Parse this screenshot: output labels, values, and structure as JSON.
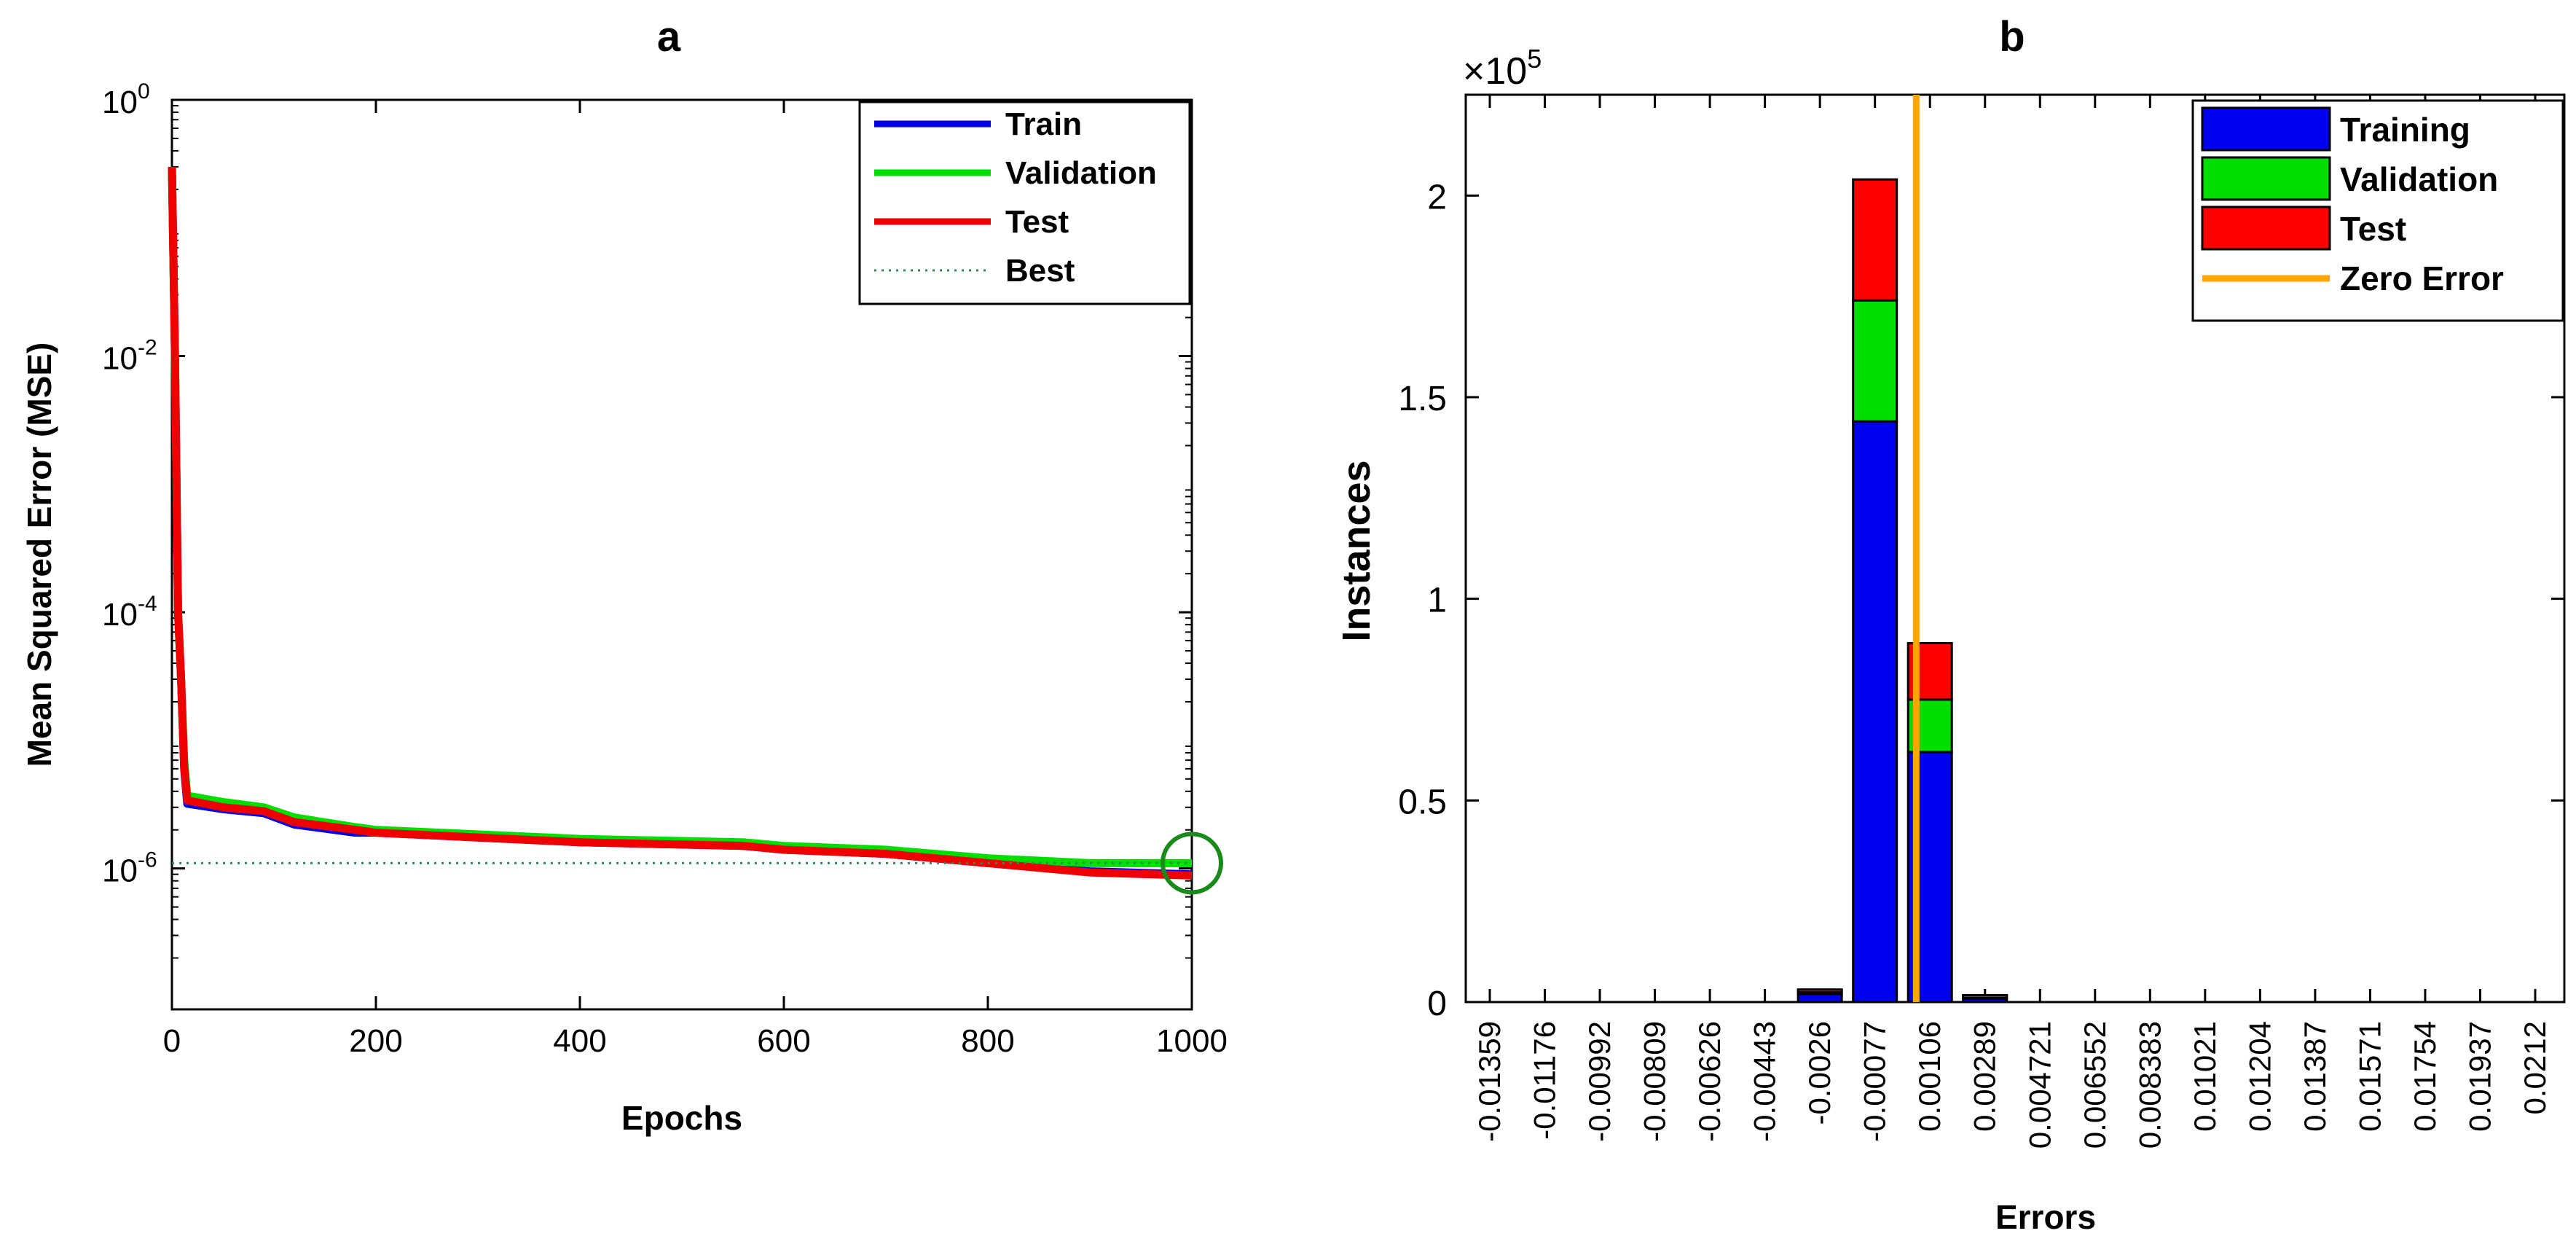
{
  "chart_data": [
    {
      "type": "line",
      "panel_label": "a",
      "title": "a",
      "xlabel": "Epochs",
      "ylabel": "Mean Squared Error  (MSE)",
      "xlim": [
        0,
        1000
      ],
      "ylim_log10": [
        -7.1,
        0
      ],
      "y_scale": "log",
      "x_ticks": [
        0,
        200,
        400,
        600,
        800,
        1000
      ],
      "y_ticks": [
        {
          "base": "10",
          "exp": "0",
          "value": 1
        },
        {
          "base": "10",
          "exp": "-2",
          "value": 0.01
        },
        {
          "base": "10",
          "exp": "-4",
          "value": 0.0001
        },
        {
          "base": "10",
          "exp": "-6",
          "value": 1e-06
        }
      ],
      "legend": {
        "position": "top-right",
        "entries": [
          {
            "label": "Train",
            "color": "#0000e6",
            "style": "solid"
          },
          {
            "label": "Validation",
            "color": "#00dd00",
            "style": "solid"
          },
          {
            "label": "Test",
            "color": "#ee0000",
            "style": "solid"
          },
          {
            "label": "Best",
            "color": "#2e8b57",
            "style": "dotted"
          }
        ]
      },
      "best": {
        "epoch": 1000,
        "value": 1.1e-06,
        "marker": "circle",
        "color": "#1a8a1a"
      },
      "series": [
        {
          "name": "Train",
          "color": "#0000e6",
          "x": [
            0,
            3,
            6,
            9,
            12,
            15,
            50,
            90,
            120,
            180,
            200,
            400,
            560,
            600,
            700,
            800,
            900,
            1000
          ],
          "y": [
            0.3,
            0.01,
            0.0001,
            3e-05,
            6e-06,
            3.2e-06,
            2.9e-06,
            2.7e-06,
            2.2e-06,
            1.9e-06,
            1.9e-06,
            1.6e-06,
            1.5e-06,
            1.4e-06,
            1.3e-06,
            1.1e-06,
            9.5e-07,
            9e-07
          ]
        },
        {
          "name": "Validation",
          "color": "#00dd00",
          "x": [
            0,
            3,
            6,
            9,
            12,
            15,
            50,
            90,
            120,
            180,
            200,
            400,
            560,
            600,
            700,
            800,
            900,
            1000
          ],
          "y": [
            0.3,
            0.01,
            0.0001,
            3e-05,
            7e-06,
            3.7e-06,
            3.3e-06,
            3e-06,
            2.5e-06,
            2.1e-06,
            2e-06,
            1.7e-06,
            1.6e-06,
            1.5e-06,
            1.4e-06,
            1.2e-06,
            1.1e-06,
            1.1e-06
          ]
        },
        {
          "name": "Test",
          "color": "#ee0000",
          "x": [
            0,
            3,
            6,
            9,
            12,
            15,
            50,
            90,
            120,
            180,
            200,
            400,
            560,
            600,
            700,
            800,
            900,
            1000
          ],
          "y": [
            0.3,
            0.01,
            0.0001,
            3e-05,
            6.2e-06,
            3.4e-06,
            3e-06,
            2.8e-06,
            2.3e-06,
            2e-06,
            1.9e-06,
            1.6e-06,
            1.5e-06,
            1.4e-06,
            1.3e-06,
            1.1e-06,
            9.3e-07,
            8.8e-07
          ]
        }
      ]
    },
    {
      "type": "bar",
      "stacked": true,
      "panel_label": "b",
      "title": "b",
      "xlabel": "Errors",
      "ylabel": "Instances",
      "y_multiplier": {
        "base": "×10",
        "exp": "5"
      },
      "ylim": [
        0,
        2.25
      ],
      "y_ticks": [
        0,
        0.5,
        1,
        1.5,
        2
      ],
      "y_tick_labels": [
        "0",
        "0.5",
        "1",
        "1.5",
        "2"
      ],
      "categories": [
        "-0.01359",
        "-0.01176",
        "-0.00992",
        "-0.00809",
        "-0.00626",
        "-0.00443",
        "-0.0026",
        "-0.00077",
        "0.00106",
        "0.00289",
        "0.004721",
        "0.006552",
        "0.008383",
        "0.01021",
        "0.01204",
        "0.01387",
        "0.01571",
        "0.01754",
        "0.01937",
        "0.0212"
      ],
      "zero_error_position": 7.75,
      "legend": {
        "position": "top-right",
        "entries": [
          {
            "label": "Training",
            "color": "#0000f0",
            "kind": "patch"
          },
          {
            "label": "Validation",
            "color": "#00dd00",
            "kind": "patch"
          },
          {
            "label": "Test",
            "color": "#ff0000",
            "kind": "patch"
          },
          {
            "label": "Zero Error",
            "color": "#ffa500",
            "kind": "line"
          }
        ]
      },
      "series": [
        {
          "name": "Training",
          "color": "#0000f0",
          "values": [
            0,
            0,
            0,
            0,
            0,
            0,
            0.02,
            1.44,
            0.62,
            0.008,
            0,
            0,
            0,
            0,
            0,
            0,
            0,
            0,
            0,
            0
          ]
        },
        {
          "name": "Validation",
          "color": "#00dd00",
          "values": [
            0,
            0,
            0,
            0,
            0,
            0,
            0.004,
            0.3,
            0.13,
            0.002,
            0,
            0,
            0,
            0,
            0,
            0,
            0,
            0,
            0,
            0
          ]
        },
        {
          "name": "Test",
          "color": "#ff0000",
          "values": [
            0,
            0,
            0,
            0,
            0,
            0,
            0.004,
            0.3,
            0.14,
            0.002,
            0,
            0,
            0,
            0,
            0,
            0,
            0,
            0,
            0,
            0
          ]
        }
      ]
    }
  ]
}
